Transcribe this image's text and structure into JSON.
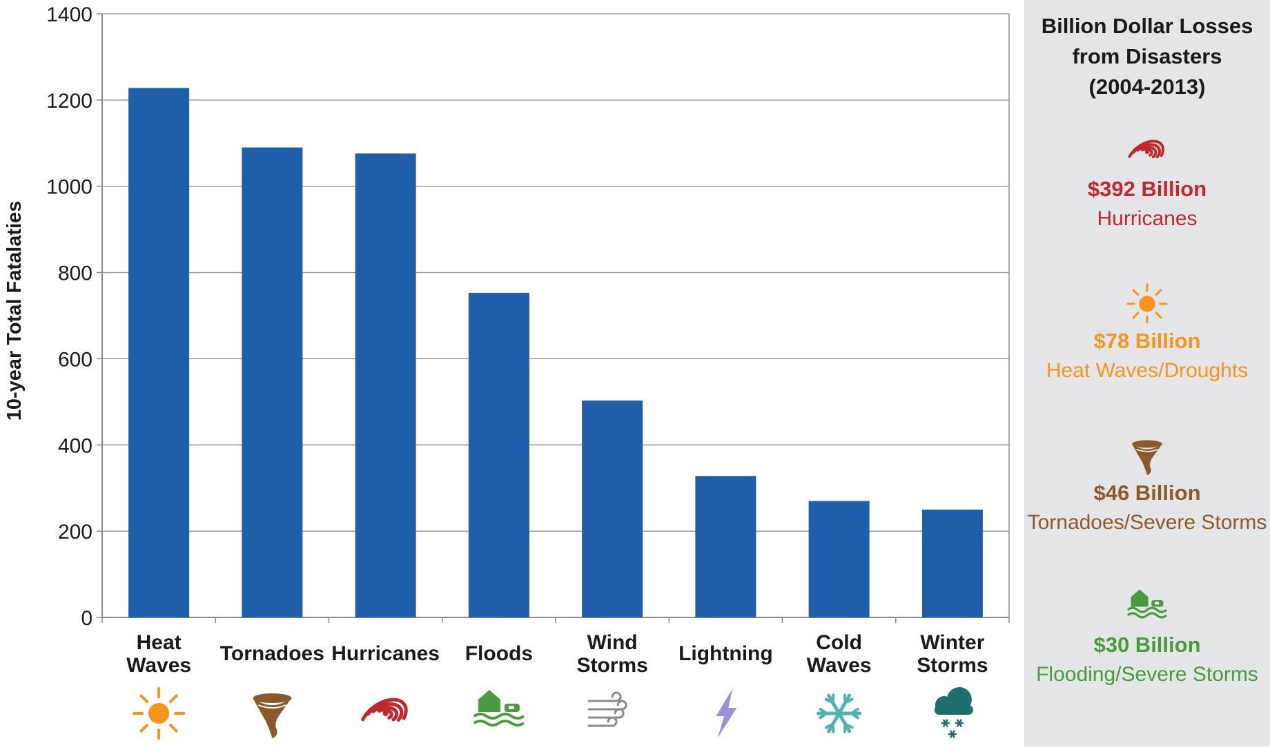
{
  "chart_data": {
    "type": "bar",
    "categories": [
      [
        "Heat",
        "Waves"
      ],
      [
        "Tornadoes"
      ],
      [
        "Hurricanes"
      ],
      [
        "Floods"
      ],
      [
        "Wind",
        "Storms"
      ],
      [
        "Lightning"
      ],
      [
        "Cold",
        "Waves"
      ],
      [
        "Winter",
        "Storms"
      ]
    ],
    "category_icons": [
      "sun-icon",
      "tornado-icon",
      "hurricane-icon",
      "flood-icon",
      "wind-icon",
      "lightning-icon",
      "snowflake-icon",
      "snow-cloud-icon"
    ],
    "values": [
      1228,
      1090,
      1076,
      753,
      503,
      328,
      270,
      250
    ],
    "xlabel": "",
    "ylabel": "10-year Total Fatalaties",
    "ylim": [
      0,
      1400
    ],
    "yticks": [
      "0",
      "200",
      "400",
      "600",
      "800",
      "1000",
      "1200",
      "1400"
    ],
    "grid": true,
    "bar_color": "#1f5ea8"
  },
  "side_panel": {
    "title_lines": [
      "Billion Dollar Losses",
      "from Disasters",
      "(2004-2013)"
    ],
    "entries": [
      {
        "icon": "hurricane-icon",
        "amount": "$392 Billion",
        "label": "Hurricanes",
        "color": "#c1272d"
      },
      {
        "icon": "sun-icon",
        "amount": "$78 Billion",
        "label": "Heat Waves/Droughts",
        "color": "#f7941d"
      },
      {
        "icon": "tornado-icon",
        "amount": "$46 Billion",
        "label": "Tornadoes/Severe Storms",
        "color": "#8b5a2b"
      },
      {
        "icon": "flood-icon",
        "amount": "$30 Billion",
        "label": "Flooding/Severe Storms",
        "color": "#4a9a3e"
      }
    ]
  },
  "icon_colors": {
    "sun": "#f7941d",
    "tornado": "#8b5a2b",
    "hurricane": "#c1272d",
    "flood": "#4a9a3e",
    "wind": "#8a8a8a",
    "lightning": "#9b8fd9",
    "snowflake": "#4cb6ac",
    "snow_cloud": "#1f6e6e"
  }
}
